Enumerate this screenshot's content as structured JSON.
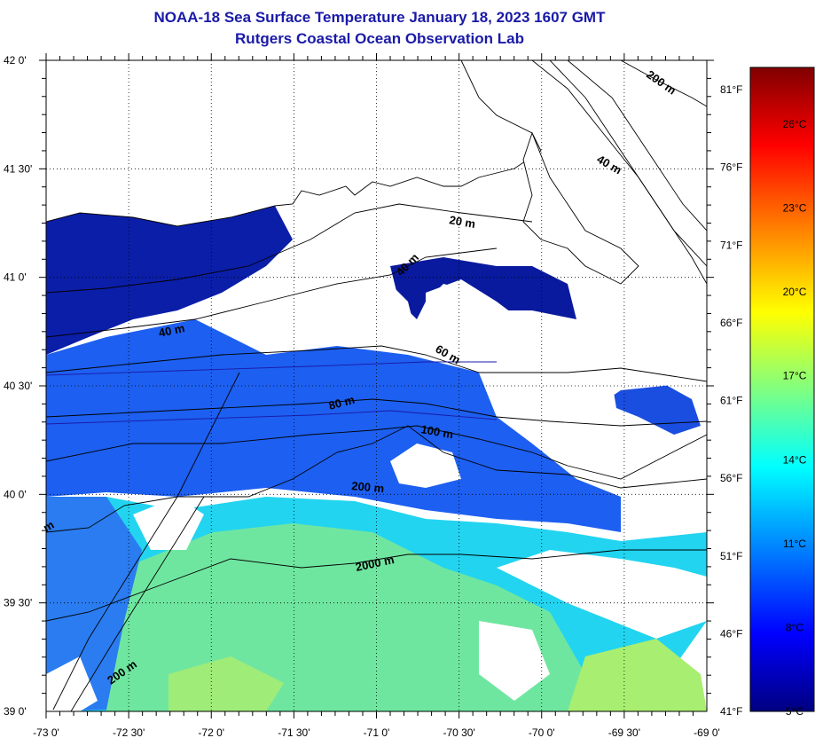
{
  "title": {
    "line1": "NOAA-18 Sea Surface Temperature January 18, 2023 1607 GMT",
    "line2": "Rutgers Coastal Ocean Observation Lab"
  },
  "axes": {
    "lon_labels": [
      "-73 0'",
      "-72 30'",
      "-72 0'",
      "-71 30'",
      "-71 0'",
      "-70 30'",
      "-70 0'",
      "-69 30'",
      "-69 0'"
    ],
    "lat_labels": [
      "42 0'",
      "41 30'",
      "41 0'",
      "40 30'",
      "40 0'",
      "39 30'",
      "39 0'"
    ],
    "lon_range": [
      -73,
      -69
    ],
    "lat_range": [
      39,
      42
    ],
    "grid": "dotted"
  },
  "fahrenheit_labels": [
    "81°F",
    "76°F",
    "71°F",
    "66°F",
    "61°F",
    "56°F",
    "51°F",
    "46°F",
    "41°F"
  ],
  "colorbar": {
    "labels": [
      "26°C",
      "23°C",
      "20°C",
      "17°C",
      "14°C",
      "11°C",
      "8°C",
      "5°C"
    ],
    "range_c": [
      5,
      28
    ]
  },
  "contour_labels": [
    "200 m",
    "40 m",
    "20 m",
    "40 m",
    "40 m",
    "60 m",
    "80 m",
    "100 m",
    "200 m",
    "2000 m",
    "200 m",
    "m"
  ],
  "colors": {
    "title": "#1a1aa8",
    "cold": "#0a1aa0",
    "mid": "#1a5af0",
    "cyan": "#10d8f0",
    "warm_green": "#70e890"
  }
}
